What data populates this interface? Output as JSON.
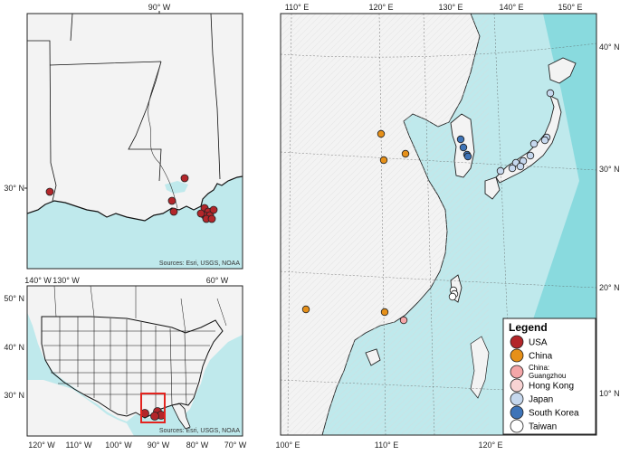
{
  "colors": {
    "ocean": "#bfe9ec",
    "ocean_shelf": "#5ccdd3",
    "land": "#f3f3f3",
    "border": "#111111",
    "usa": "#b3262a",
    "china": "#e69019",
    "china_guangzhou": "#f4a6a8",
    "hong_kong": "#f8d3d3",
    "japan": "#c6d8ee",
    "south_korea": "#3e74b8",
    "taiwan": "#ffffff",
    "inset_box": "#e3241f"
  },
  "panel_gulf": {
    "top_labels": [
      "90° W"
    ],
    "left_labels": [
      "30° N"
    ],
    "source": "Sources: Esri, USGS, NOAA"
  },
  "panel_usa": {
    "top_labels": [
      "140° W",
      "130° W",
      "60° W"
    ],
    "bottom_labels": [
      "120° W",
      "110° W",
      "100° W",
      "90° W",
      "80° W",
      "70° W"
    ],
    "left_labels": [
      "50° N",
      "40° N",
      "30° N"
    ],
    "source": "Sources: Esri, USGS, NOAA"
  },
  "panel_asia": {
    "top_labels": [
      "110° E",
      "120° E",
      "130° E",
      "140° E",
      "150° E"
    ],
    "bottom_labels": [
      "100° E",
      "110° E",
      "120° E"
    ],
    "right_labels": [
      "40° N",
      "30° N",
      "20° N",
      "10° N"
    ]
  },
  "legend": {
    "title": "Legend",
    "items": [
      {
        "label": "USA",
        "color_key": "usa"
      },
      {
        "label": "China",
        "color_key": "china"
      },
      {
        "label": "China: Guangzhou",
        "color_key": "china_guangzhou"
      },
      {
        "label": "Hong Kong",
        "color_key": "hong_kong"
      },
      {
        "label": "Japan",
        "color_key": "japan"
      },
      {
        "label": "South Korea",
        "color_key": "south_korea"
      },
      {
        "label": "Taiwan",
        "color_key": "taiwan"
      }
    ]
  },
  "points": {
    "gulf_usa": 12,
    "usa_overview": 4,
    "china": 5,
    "china_guangzhou": 1,
    "hong_kong": 0,
    "japan": 10,
    "south_korea": 4,
    "taiwan": 3
  }
}
